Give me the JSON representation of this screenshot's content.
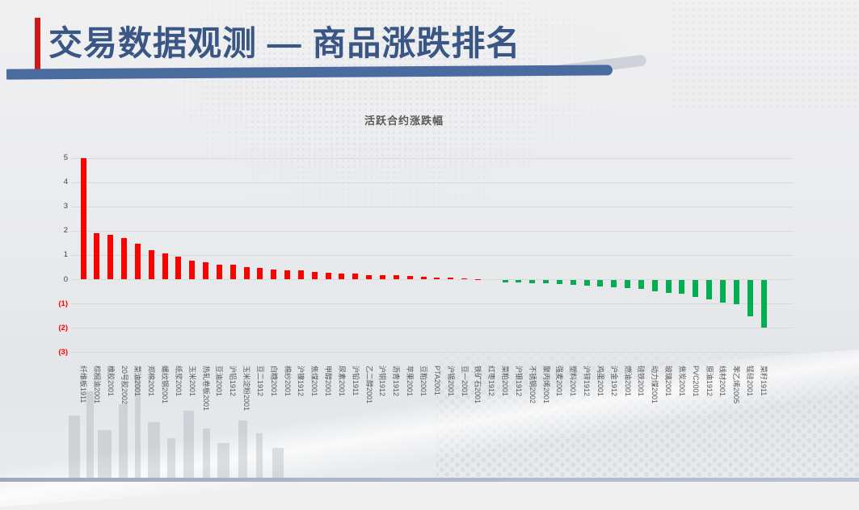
{
  "slide": {
    "title": "交易数据观测 — 商品涨跌排名",
    "title_color": "#3A5685",
    "accent_bar_color": "#D01818",
    "underline_color": "#4A6B9D",
    "bottom_bar_color": "#AAB5C3"
  },
  "chart_data": {
    "type": "bar",
    "title": "活跃合约涨跌幅",
    "categories": [
      "纤维板1911",
      "棕榈油2001",
      "橡胶2001",
      "20号胶2002",
      "菜油2001",
      "郑棉2001",
      "螺纹钢2001",
      "纸浆2001",
      "玉米2001",
      "热轧卷板2001",
      "豆油2001",
      "沪铝1912",
      "玉米淀粉2001",
      "豆二1912",
      "白糖2001",
      "棉纱2001",
      "沪镍1912",
      "焦煤2001",
      "甲醇2001",
      "尿素2001",
      "沪铅1911",
      "乙二醇2001",
      "沪铜1912",
      "沥青1912",
      "苹果2001",
      "豆粕2001",
      "PTA2001",
      "沪锡2001",
      "豆一2001",
      "铁矿石2001",
      "红枣1912",
      "菜粕2001",
      "沪银1912",
      "不锈钢2002",
      "聚丙烯2001",
      "强麦2001",
      "塑料2001",
      "沪锌1912",
      "鸡蛋2001",
      "沪金1912",
      "燃油2001",
      "硅铁2001",
      "动力煤2001",
      "玻璃2001",
      "焦炭2001",
      "PVC2001",
      "原油1912",
      "线材2001",
      "苯乙烯2005",
      "锰硅2001",
      "菜籽1911"
    ],
    "values": [
      5.0,
      1.9,
      1.82,
      1.7,
      1.46,
      1.18,
      1.05,
      0.94,
      0.78,
      0.7,
      0.61,
      0.59,
      0.51,
      0.46,
      0.4,
      0.37,
      0.36,
      0.3,
      0.26,
      0.24,
      0.23,
      0.18,
      0.16,
      0.15,
      0.12,
      0.1,
      0.08,
      0.05,
      0.03,
      0.01,
      0.0,
      -0.09,
      -0.11,
      -0.12,
      -0.14,
      -0.16,
      -0.19,
      -0.22,
      -0.27,
      -0.3,
      -0.34,
      -0.38,
      -0.46,
      -0.52,
      -0.58,
      -0.69,
      -0.81,
      -0.94,
      -0.99,
      -1.48,
      -1.95
    ],
    "ylim": [
      -3,
      5
    ],
    "ytick_values": [
      5,
      4,
      3,
      2,
      1,
      0,
      -1,
      -2,
      -3
    ],
    "ytick_labels": [
      "5",
      "4",
      "3",
      "2",
      "1",
      "0",
      "(1)",
      "(2)",
      "(3)"
    ],
    "positive_color": "#FF0000",
    "negative_color": "#00B050",
    "negative_tick_color": "#FF0000",
    "gridline_color": "#D8D9DA",
    "grid": true,
    "legend": false,
    "x_label_rotation": 90
  }
}
